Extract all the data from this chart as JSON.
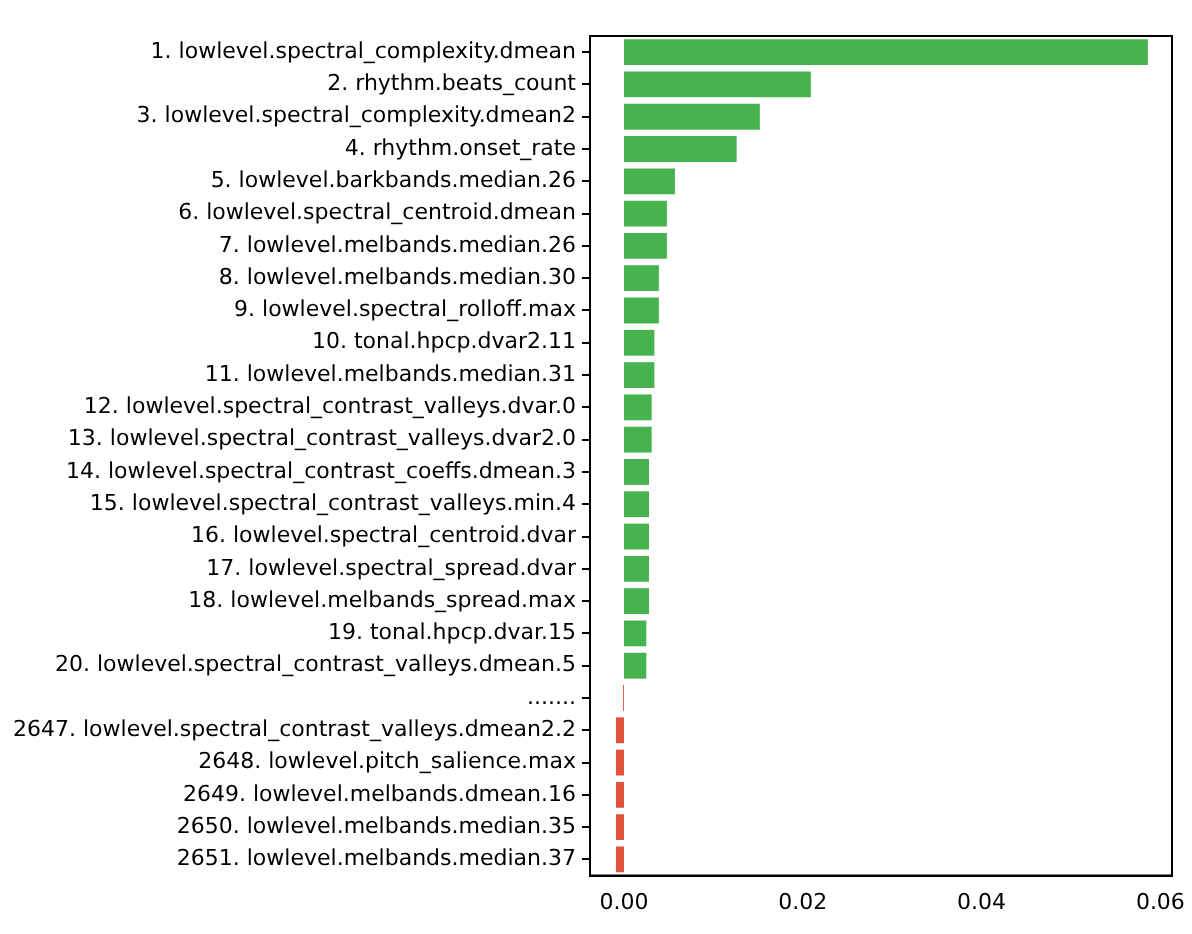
{
  "chart_data": {
    "type": "bar",
    "orientation": "horizontal",
    "categories": [
      "1. lowlevel.spectral_complexity.dmean",
      "2. rhythm.beats_count",
      "3. lowlevel.spectral_complexity.dmean2",
      "4. rhythm.onset_rate",
      "5. lowlevel.barkbands.median.26",
      "6. lowlevel.spectral_centroid.dmean",
      "7. lowlevel.melbands.median.26",
      "8. lowlevel.melbands.median.30",
      "9. lowlevel.spectral_rolloff.max",
      "10. tonal.hpcp.dvar2.11",
      "11. lowlevel.melbands.median.31",
      "12. lowlevel.spectral_contrast_valleys.dvar.0",
      "13. lowlevel.spectral_contrast_valleys.dvar2.0",
      "14. lowlevel.spectral_contrast_coeffs.dmean.3",
      "15. lowlevel.spectral_contrast_valleys.min.4",
      "16. lowlevel.spectral_centroid.dvar",
      "17. lowlevel.spectral_spread.dvar",
      "18. lowlevel.melbands_spread.max",
      "19. tonal.hpcp.dvar.15",
      "20. lowlevel.spectral_contrast_valleys.dmean.5",
      ".......",
      "2647. lowlevel.spectral_contrast_valleys.dmean2.2",
      "2648. lowlevel.pitch_salience.max",
      "2649. lowlevel.melbands.dmean.16",
      "2650. lowlevel.melbands.median.35",
      "2651. lowlevel.melbands.median.37"
    ],
    "values": [
      0.0586,
      0.0209,
      0.0152,
      0.0126,
      0.0057,
      0.0048,
      0.0048,
      0.0039,
      0.0039,
      0.0034,
      0.0034,
      0.0031,
      0.0031,
      0.0028,
      0.0028,
      0.0028,
      0.0028,
      0.0028,
      0.0025,
      0.0025,
      -0.0001,
      -0.0009,
      -0.0009,
      -0.0009,
      -0.0009,
      -0.0009
    ],
    "colors": [
      "#46b34e",
      "#46b34e",
      "#46b34e",
      "#46b34e",
      "#46b34e",
      "#46b34e",
      "#46b34e",
      "#46b34e",
      "#46b34e",
      "#46b34e",
      "#46b34e",
      "#46b34e",
      "#46b34e",
      "#46b34e",
      "#46b34e",
      "#46b34e",
      "#46b34e",
      "#46b34e",
      "#46b34e",
      "#46b34e",
      "#e0523e",
      "#e0523e",
      "#e0523e",
      "#e0523e",
      "#e0523e",
      "#e0523e"
    ],
    "xlim": [
      -0.0038,
      0.0613
    ],
    "xticks": [
      {
        "value": 0,
        "label": "0.00"
      },
      {
        "value": 0.02,
        "label": "0.02"
      },
      {
        "value": 0.04,
        "label": "0.04"
      },
      {
        "value": 0.06,
        "label": "0.06"
      }
    ],
    "grid": false,
    "legend": false
  }
}
